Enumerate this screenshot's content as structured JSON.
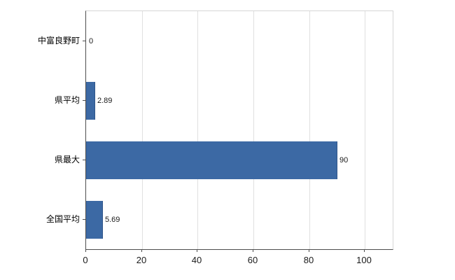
{
  "chart_data": {
    "type": "bar",
    "orientation": "horizontal",
    "title": "",
    "xlabel": "",
    "ylabel": "",
    "categories": [
      "中富良野町",
      "県平均",
      "県最大",
      "全国平均"
    ],
    "values": [
      0,
      2.89,
      90,
      5.69
    ],
    "value_labels": [
      "0",
      "2.89",
      "90",
      "5.69"
    ],
    "x_ticks": [
      0,
      20,
      40,
      60,
      80,
      100
    ],
    "x_tick_labels": [
      "0",
      "20",
      "40",
      "60",
      "80",
      "100"
    ],
    "xlim": [
      0,
      110
    ],
    "grid": true,
    "legend": "none",
    "bar_color": "#3c69a4",
    "bar_border_color": "#30558a",
    "grid_color": "#e0e0e0",
    "axis_color": "#4d4d4d",
    "text_color": "#1a1a1a",
    "background_color": "#ffffff"
  }
}
